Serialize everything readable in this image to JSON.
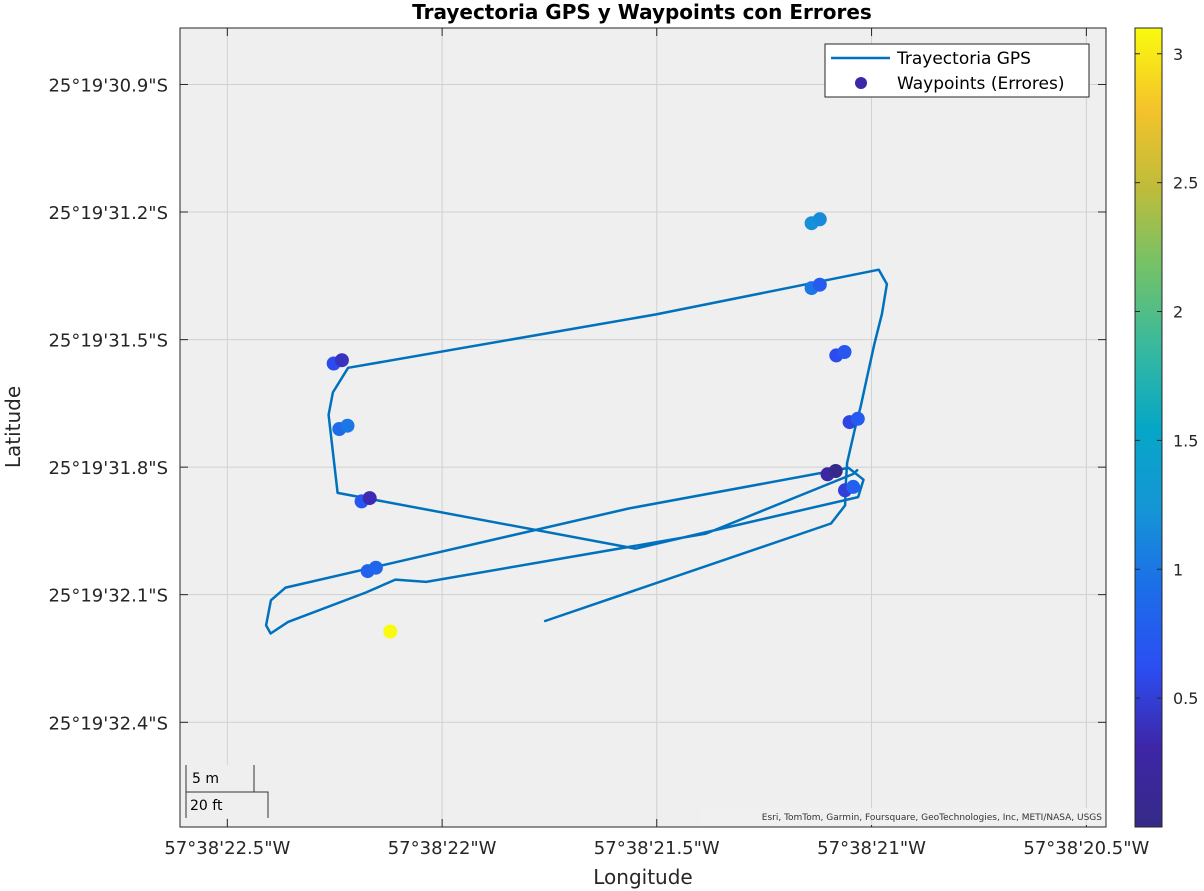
{
  "chart_data": {
    "type": "scatter",
    "title": "Trayectoria GPS y Waypoints con Errores",
    "xlabel": "Longitude",
    "ylabel": "Latitude",
    "x_ticks": [
      {
        "value": -57.6395833,
        "label": "57°38'22.5\"W"
      },
      {
        "value": -57.6394444,
        "label": "57°38'22\"W"
      },
      {
        "value": -57.6393056,
        "label": "57°38'21.5\"W"
      },
      {
        "value": -57.6391667,
        "label": "57°38'21\"W"
      },
      {
        "value": -57.6390278,
        "label": "57°38'20.5\"W"
      }
    ],
    "y_ticks": [
      {
        "value": -25.32525,
        "label": "25°19'30.9\"S"
      },
      {
        "value": -25.3253333,
        "label": "25°19'31.2\"S"
      },
      {
        "value": -25.3254167,
        "label": "25°19'31.5\"S"
      },
      {
        "value": -25.3255,
        "label": "25°19'31.8\"S"
      },
      {
        "value": -25.3255833,
        "label": "25°19'32.1\"S"
      },
      {
        "value": -25.3256667,
        "label": "25°19'32.4\"S"
      }
    ],
    "xlim": [
      -57.6396139,
      -57.6390151
    ],
    "ylim": [
      -25.3257351,
      -25.3252131
    ],
    "grid": true,
    "legend": {
      "location": "top-right",
      "entries": [
        "Trayectoria GPS",
        "Waypoints (Errores)"
      ]
    },
    "colorbar": {
      "range": [
        0,
        3.1
      ],
      "ticks": [
        0.5,
        1,
        1.5,
        2,
        2.5,
        3
      ],
      "tick_labels": [
        "0.5",
        "1",
        "1.5",
        "2",
        "2.5",
        "3"
      ],
      "colormap": "parula"
    },
    "series": [
      {
        "name": "Trayectoria GPS",
        "kind": "line",
        "color": "#0072BD",
        "x": [
          -57.6393778,
          -57.6391929,
          -57.6391838,
          -57.6391833,
          -57.6391825,
          -57.6391775,
          -57.6391738,
          -57.6391688,
          -57.639165,
          -57.63916,
          -57.6391568,
          -57.639162,
          -57.639306,
          -57.6395052,
          -57.639515,
          -57.6395178,
          -57.639512,
          -57.6393195,
          -57.6391754,
          -57.6391719,
          -57.6391816,
          -57.6393238,
          -57.6395456,
          -57.6395551,
          -57.6395582,
          -57.6395553,
          -57.639544,
          -57.6394937,
          -57.6394746,
          -57.6394547,
          -57.6392738,
          -57.6391786,
          -57.639176
        ],
        "y": [
          -25.3256005,
          -25.3255368,
          -25.325525,
          -25.32551,
          -25.3254972,
          -25.325475,
          -25.3254606,
          -25.3254375,
          -25.32542,
          -25.3254,
          -25.3253804,
          -25.325371,
          -25.3254002,
          -25.3254351,
          -25.3254512,
          -25.3254658,
          -25.3255168,
          -25.3255532,
          -25.3255196,
          -25.3255082,
          -25.3255005,
          -25.325527,
          -25.3255787,
          -25.325587,
          -25.3256033,
          -25.3256087,
          -25.3256011,
          -25.3255819,
          -25.3255735,
          -25.325575,
          -25.3255434,
          -25.3255045,
          -25.325502
        ]
      },
      {
        "name": "Waypoints (Errores)",
        "kind": "scatter",
        "x": [
          -57.6395145,
          -57.6395092,
          -57.6395109,
          -57.6395056,
          -57.6394965,
          -57.6394912,
          -57.6394925,
          -57.6394872,
          -57.6392055,
          -57.6392002,
          -57.6392055,
          -57.6392002,
          -57.6391895,
          -57.6391842,
          -57.6391809,
          -57.6391756,
          -57.6391839,
          -57.6391786,
          -57.6391952,
          -57.6391899,
          -57.6394779
        ],
        "y": [
          -25.3254323,
          -25.3254301,
          -25.3254751,
          -25.3254729,
          -25.3255224,
          -25.3255202,
          -25.3255679,
          -25.3255657,
          -25.3253406,
          -25.3253381,
          -25.325383,
          -25.3253808,
          -25.325427,
          -25.3254248,
          -25.3254706,
          -25.3254684,
          -25.3255151,
          -25.3255129,
          -25.3255047,
          -25.3255025,
          -25.3256074
        ],
        "error": [
          0.6,
          0.4,
          0.9,
          1.0,
          0.7,
          0.35,
          0.8,
          0.85,
          1.2,
          1.15,
          1.0,
          0.75,
          0.6,
          0.7,
          0.55,
          0.75,
          0.5,
          0.8,
          0.25,
          0.05,
          3.1
        ]
      }
    ]
  },
  "scalebar": {
    "metric": "5 m",
    "imperial": "20 ft"
  },
  "attribution": "Esri, TomTom, Garmin, Foursquare, GeoTechnologies, Inc, METI/NASA, USGS"
}
